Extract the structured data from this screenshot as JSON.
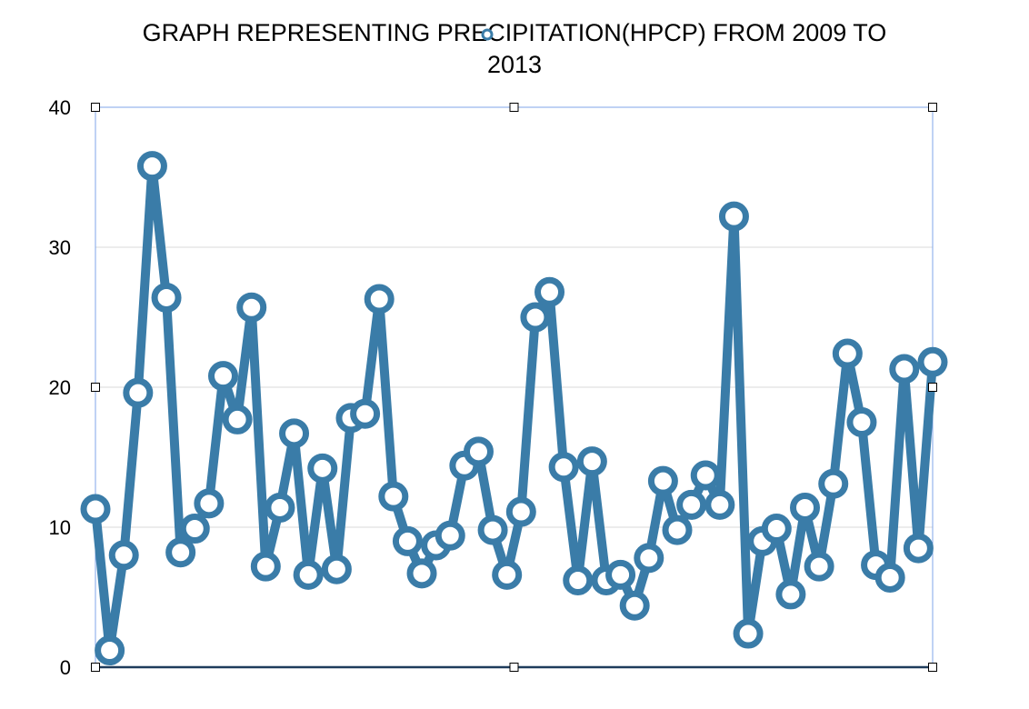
{
  "chart_data": {
    "type": "line",
    "title_line1": "GRAPH REPRESENTING PRECIPITATION(HPCP) FROM 2009 TO",
    "title_line2": "2013",
    "xlabel": "",
    "ylabel": "",
    "ylim": [
      0,
      40
    ],
    "yticks": [
      "0",
      "10",
      "20",
      "30",
      "40"
    ],
    "grid": true,
    "legend": "top-center",
    "colors": {
      "series": "#3a7ca8",
      "grid": "#d9d9d9",
      "baseline": "#1f3c5c",
      "selection": "#7fa6e8"
    },
    "series": [
      {
        "values": [
          11.3,
          1.2,
          8.0,
          19.6,
          35.8,
          26.4,
          8.2,
          9.9,
          11.7,
          20.8,
          17.7,
          25.7,
          7.2,
          11.4,
          16.7,
          6.6,
          14.2,
          7.0,
          17.8,
          18.1,
          26.3,
          12.2,
          9.0,
          6.7,
          8.7,
          9.4,
          14.4,
          15.4,
          9.8,
          6.6,
          11.1,
          25.0,
          26.8,
          14.3,
          6.2,
          14.7,
          6.2,
          6.6,
          4.4,
          7.8,
          13.3,
          9.8,
          11.6,
          13.7,
          11.6,
          32.2,
          2.4,
          9.0,
          9.9,
          5.2,
          11.4,
          7.2,
          13.1,
          22.4,
          17.5,
          7.3,
          6.4,
          21.3,
          8.5,
          21.8
        ]
      }
    ]
  }
}
